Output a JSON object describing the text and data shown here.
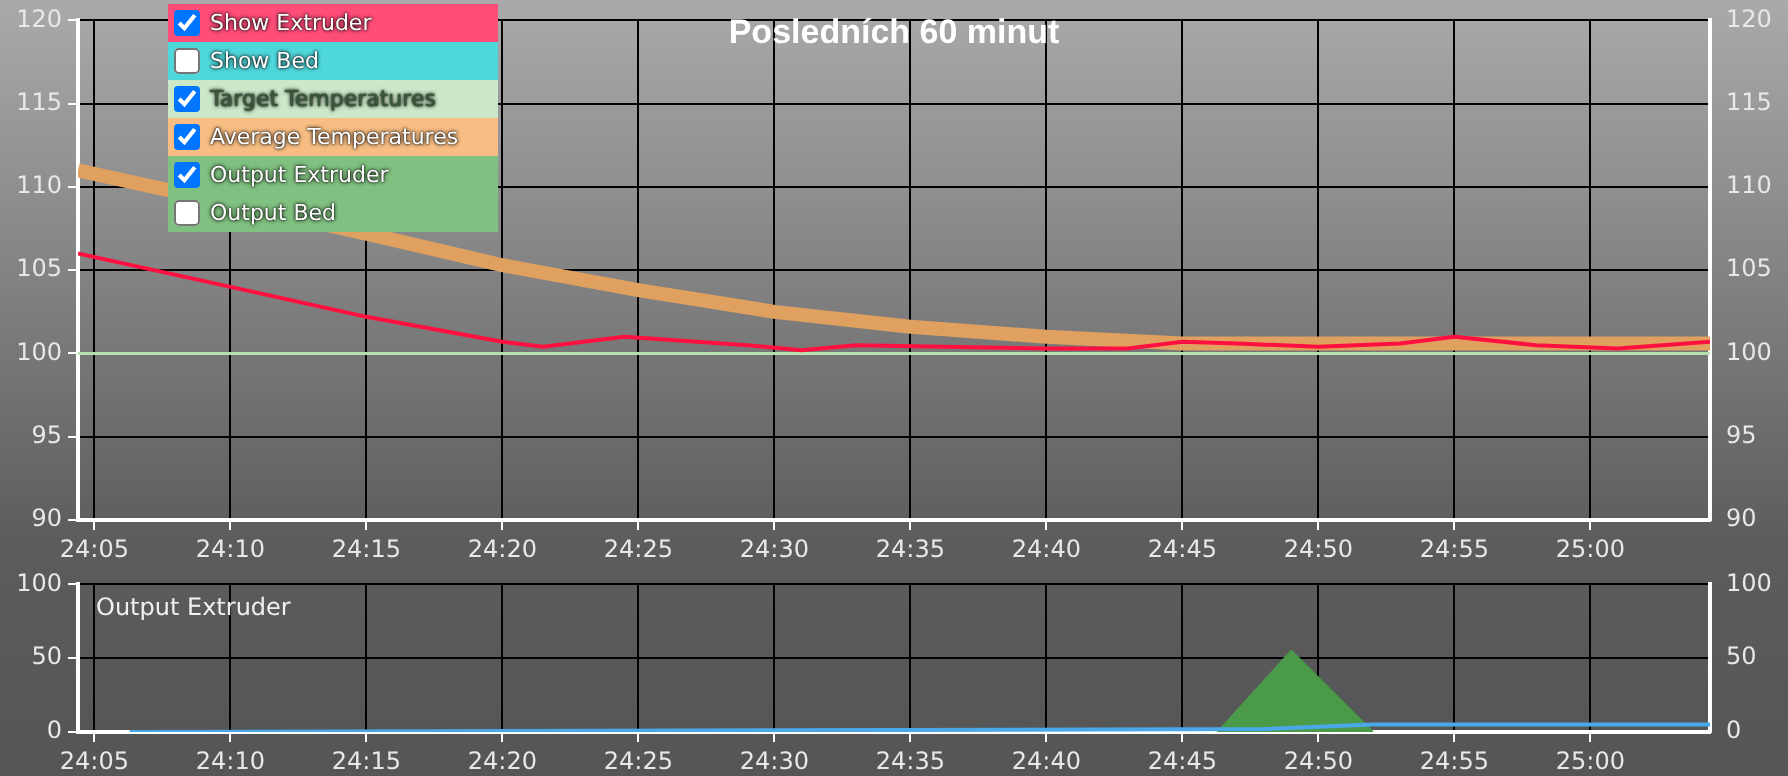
{
  "chart_data": [
    {
      "type": "line",
      "title": "Posledních 60 minut",
      "annotations": [
        "Show Extruder",
        "Show Bed",
        "Target Temperatures",
        "Average Temperatures",
        "Output Extruder",
        "Output Bed"
      ],
      "series": [
        {
          "color": "#ff1040",
          "x": [
            24.0733,
            24.1667,
            24.25,
            24.3333,
            24.3583,
            24.4083,
            24.4833,
            24.5167,
            24.55,
            24.6667,
            24.7167,
            24.75,
            24.7833,
            24.8333,
            24.8833,
            24.9167,
            24.9667,
            25.0167,
            25.0733
          ],
          "values": [
            106,
            104,
            102.2,
            100.7,
            100.4,
            101,
            100.5,
            100.2,
            100.5,
            100.3,
            100.3,
            100.7,
            100.6,
            100.4,
            100.6,
            101,
            100.5,
            100.3,
            100.7
          ]
        },
        {
          "color": "#e0a060",
          "x": [
            24.0733,
            24.1667,
            24.25,
            24.3333,
            24.4167,
            24.5,
            24.5833,
            24.6667,
            24.75,
            24.8333,
            24.9167,
            25,
            25.0733
          ],
          "values": [
            111,
            null,
            107.2,
            105.3,
            103.8,
            102.5,
            101.6,
            101,
            100.6,
            100.6,
            100.6,
            100.6,
            100.6
          ]
        }
      ],
      "ref_lines": [
        {
          "axis": "y",
          "value": 100,
          "color": "#b8e0b0"
        }
      ],
      "xlim": [
        24.0733,
        25.0733
      ],
      "xticks": [
        {
          "value": 24.083333,
          "label": "24:05"
        },
        {
          "value": 24.166667,
          "label": "24:10"
        },
        {
          "value": 24.25,
          "label": "24:15"
        },
        {
          "value": 24.333333,
          "label": "24:20"
        },
        {
          "value": 24.416667,
          "label": "24:25"
        },
        {
          "value": 24.5,
          "label": "24:30"
        },
        {
          "value": 24.583333,
          "label": "24:35"
        },
        {
          "value": 24.666667,
          "label": "24:40"
        },
        {
          "value": 24.75,
          "label": "24:45"
        },
        {
          "value": 24.833333,
          "label": "24:50"
        },
        {
          "value": 24.916667,
          "label": "24:55"
        },
        {
          "value": 25,
          "label": "25:00"
        }
      ],
      "ylim": [
        90,
        120
      ],
      "yticks": [
        90,
        95,
        100,
        105,
        110,
        115,
        120
      ],
      "y2lim": [
        90,
        120
      ],
      "y2ticks": [
        90,
        95,
        100,
        105,
        110,
        115,
        120
      ],
      "grid": true,
      "legend": false
    },
    {
      "type": "line",
      "series": [
        {
          "color": "#4aa8e8",
          "x": [
            24.105,
            24.8,
            24.8667,
            25.0733
          ],
          "values": [
            0,
            2,
            5,
            5
          ]
        },
        {
          "type": "area",
          "name": "Output Extruder",
          "color": "#4a9a4a",
          "x": [
            24.7717,
            24.8167,
            24.8667
          ],
          "values": [
            0,
            55,
            0
          ]
        }
      ],
      "xlim": [
        24.0733,
        25.0733
      ],
      "xticks": [
        {
          "value": 24.083333,
          "label": "24:05"
        },
        {
          "value": 24.166667,
          "label": "24:10"
        },
        {
          "value": 24.25,
          "label": "24:15"
        },
        {
          "value": 24.333333,
          "label": "24:20"
        },
        {
          "value": 24.416667,
          "label": "24:25"
        },
        {
          "value": 24.5,
          "label": "24:30"
        },
        {
          "value": 24.583333,
          "label": "24:35"
        },
        {
          "value": 24.666667,
          "label": "24:40"
        },
        {
          "value": 24.75,
          "label": "24:45"
        },
        {
          "value": 24.833333,
          "label": "24:50"
        },
        {
          "value": 24.916667,
          "label": "24:55"
        },
        {
          "value": 25,
          "label": "25:00"
        }
      ],
      "ylim": [
        0,
        100
      ],
      "yticks": [
        0,
        50,
        100
      ],
      "y2lim": [
        0,
        100
      ],
      "y2ticks": [
        0,
        50,
        100
      ],
      "grid": true,
      "legend": false
    }
  ]
}
